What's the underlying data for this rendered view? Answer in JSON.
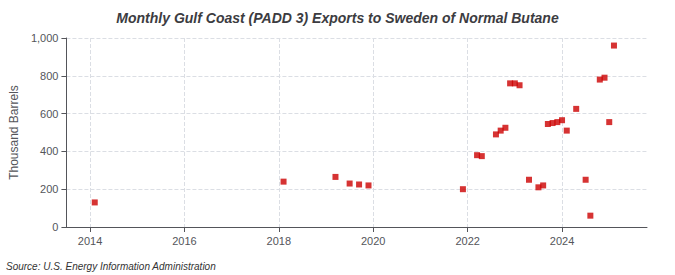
{
  "chart_data": {
    "type": "scatter",
    "title": "Monthly Gulf Coast (PADD 3) Exports to Sweden of Normal Butane",
    "ylabel": "Thousand Barrels",
    "source": "Source: U.S. Energy Information Administration",
    "x": [
      2014.1,
      2018.1,
      2019.2,
      2019.5,
      2019.7,
      2019.9,
      2021.9,
      2022.2,
      2022.3,
      2022.6,
      2022.7,
      2022.8,
      2022.9,
      2023.0,
      2023.1,
      2023.3,
      2023.5,
      2023.6,
      2023.7,
      2023.8,
      2023.9,
      2024.0,
      2024.1,
      2024.3,
      2024.5,
      2024.6,
      2024.8,
      2024.9,
      2025.0,
      2025.1
    ],
    "values": [
      130,
      240,
      265,
      230,
      225,
      220,
      200,
      380,
      375,
      490,
      510,
      525,
      760,
      760,
      750,
      250,
      210,
      220,
      545,
      550,
      555,
      565,
      510,
      625,
      250,
      60,
      780,
      790,
      555,
      960
    ],
    "xlim": [
      2013.5,
      2025.8
    ],
    "xticks": [
      2014,
      2016,
      2018,
      2020,
      2022,
      2024
    ],
    "ylim": [
      0,
      1000
    ],
    "yticks": [
      0,
      200,
      400,
      600,
      800,
      {
        "value": 1000,
        "label": "1,000"
      }
    ],
    "color": "#cc0000",
    "marker": "square",
    "grid": true
  }
}
